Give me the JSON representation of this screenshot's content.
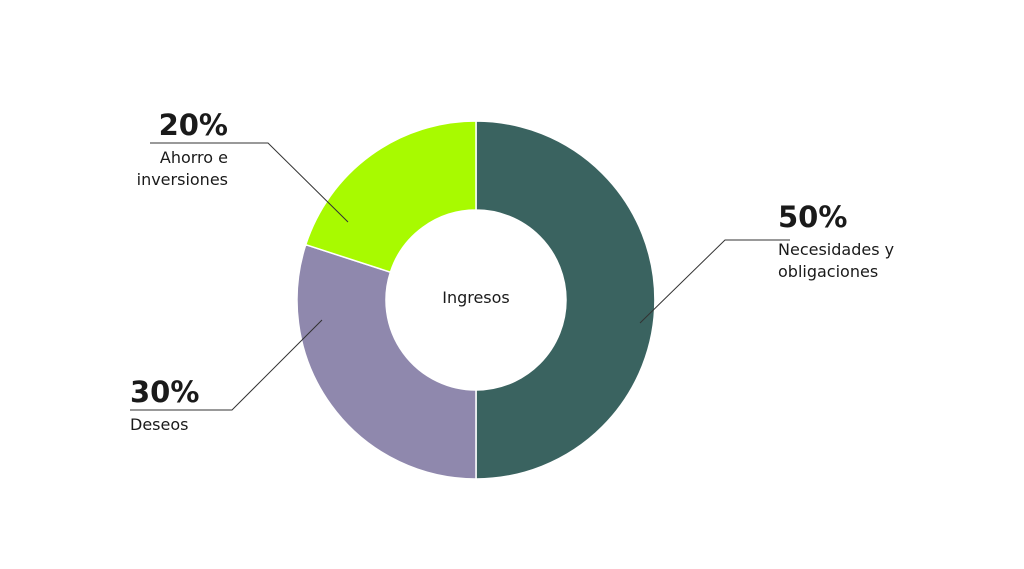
{
  "chart_data": {
    "type": "donut",
    "center_label": "Ingresos",
    "categories": [
      "Necesidades y obligaciones",
      "Deseos",
      "Ahorro e inversiones"
    ],
    "values": [
      50,
      30,
      20
    ],
    "value_labels": [
      "50%",
      "30%",
      "20%"
    ],
    "colors": [
      "#3a6360",
      "#8f88ad",
      "#a8fa00"
    ]
  }
}
